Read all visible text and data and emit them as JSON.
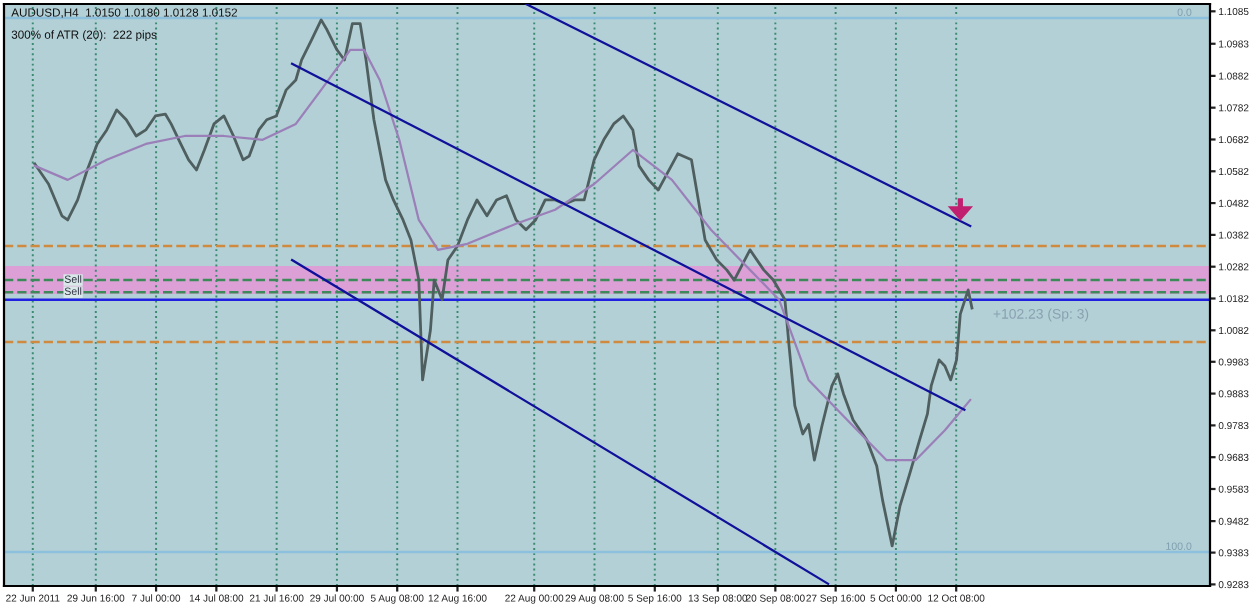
{
  "chart_data": {
    "type": "line",
    "title": "AUDUSD,H4  1.0150 1.0180 1.0128 1.0152",
    "subtitle": "300% of ATR (20):  222 pips",
    "annotations": [
      "+102.23 (Sp: 3)",
      {
        "text": "0.0",
        "x": "2011-11-10T00:00",
        "y": 1.1064
      },
      {
        "text": "100.0",
        "x": "2011-11-10T00:00",
        "y": 0.9385
      }
    ],
    "xlim": [
      "2011-06-18T12:00",
      "2011-11-12T05:00"
    ],
    "ylim": [
      0.9278,
      1.1108
    ],
    "xticks": [
      {
        "value": "2011-06-22",
        "label": "22 Jun 2011"
      },
      {
        "value": "2011-06-29T16:00",
        "label": "29 Jun 16:00"
      },
      {
        "value": "2011-07-07T00:00",
        "label": "7 Jul 00:00"
      },
      {
        "value": "2011-07-14T08:00",
        "label": "14 Jul 08:00"
      },
      {
        "value": "2011-07-21T16:00",
        "label": "21 Jul 16:00"
      },
      {
        "value": "2011-07-29T00:00",
        "label": "29 Jul 00:00"
      },
      {
        "value": "2011-08-05T08:00",
        "label": "5 Aug 08:00"
      },
      {
        "value": "2011-08-12T16:00",
        "label": "12 Aug 16:00"
      },
      {
        "value": "2011-08-22T00:00",
        "label": "22 Aug 00:00"
      },
      {
        "value": "2011-08-29T08:00",
        "label": "29 Aug 08:00"
      },
      {
        "value": "2011-09-05T16:00",
        "label": "5 Sep 16:00"
      },
      {
        "value": "2011-09-13T08:00",
        "label": "13 Sep 08:00"
      },
      {
        "value": "2011-09-20T08:00",
        "label": "20 Sep 08:00"
      },
      {
        "value": "2011-09-27T16:00",
        "label": "27 Sep 16:00"
      },
      {
        "value": "2011-10-05T00:00",
        "label": "5 Oct 00:00"
      },
      {
        "value": "2011-10-12T08:00",
        "label": "12 Oct 08:00"
      }
    ],
    "yticks": [
      1.1085,
      1.0983,
      1.0882,
      1.0782,
      1.0682,
      1.0582,
      1.0482,
      1.0382,
      1.0282,
      1.0182,
      1.0082,
      0.9983,
      0.9883,
      0.9783,
      0.9683,
      0.9583,
      0.9482,
      0.9383,
      0.9283
    ],
    "grid": "x",
    "legend": false,
    "series": [
      {
        "color": "#4f5f5f",
        "x": [
          "2011-06-22T06:00",
          "2011-06-23T22:00",
          "2011-06-25T13:00",
          "2011-06-26T06:00",
          "2011-06-27T11:00",
          "2011-06-28T15:00",
          "2011-06-29T20:00",
          "2011-07-01T00:00",
          "2011-07-02T05:00",
          "2011-07-03T09:00",
          "2011-07-04T14:00",
          "2011-07-05T18:00",
          "2011-07-06T22:00",
          "2011-07-08T03:00",
          "2011-07-08T20:00",
          "2011-07-10T00:00",
          "2011-07-10T23:00",
          "2011-07-11T22:00",
          "2011-07-12T21:00",
          "2011-07-14T01:00",
          "2011-07-15T06:00",
          "2011-07-16T10:00",
          "2011-07-17T14:00",
          "2011-07-18T08:00",
          "2011-07-19T12:00",
          "2011-07-20T11:00",
          "2011-07-21T15:00",
          "2011-07-22T20:00",
          "2011-07-24T00:00",
          "2011-07-24T17:00",
          "2011-07-25T22:00",
          "2011-07-27T02:00",
          "2011-07-27T19:00",
          "2011-07-29T00:00",
          "2011-07-29T22:00",
          "2011-07-30T21:00",
          "2011-07-31T20:00",
          "2011-08-01T13:00",
          "2011-08-02T12:00",
          "2011-08-03T22:00",
          "2011-08-04T21:00",
          "2011-08-06T01:00",
          "2011-08-07T00:00",
          "2011-08-07T23:00",
          "2011-08-08T10:00",
          "2011-08-09T09:00",
          "2011-08-09T20:00",
          "2011-08-10T19:00",
          "2011-08-11T12:00",
          "2011-08-12T16:00",
          "2011-08-13T21:00",
          "2011-08-15T01:00",
          "2011-08-16T06:00",
          "2011-08-17T10:00",
          "2011-08-18T15:00",
          "2011-08-19T19:00",
          "2011-08-21T00:00",
          "2011-08-22T04:00",
          "2011-08-23T08:00",
          "2011-08-24T13:00",
          "2011-08-25T17:00",
          "2011-08-26T22:00",
          "2011-08-28T02:00",
          "2011-08-29T07:00",
          "2011-08-30T11:00",
          "2011-08-31T16:00",
          "2011-09-01T20:00",
          "2011-09-03T00:00",
          "2011-09-03T18:00",
          "2011-09-04T22:00",
          "2011-09-06T02:00",
          "2011-09-08T11:00",
          "2011-09-10T03:00",
          "2011-09-11T19:00",
          "2011-09-13T05:00",
          "2011-09-14T10:00",
          "2011-09-15T08:00",
          "2011-09-17T06:00",
          "2011-09-18T22:00",
          "2011-09-20T02:00",
          "2011-09-21T12:00",
          "2011-09-22T00:00",
          "2011-09-22T17:00",
          "2011-09-23T16:00",
          "2011-09-24T09:00",
          "2011-09-25T02:00",
          "2011-09-26T00:00",
          "2011-09-27T05:00",
          "2011-09-27T22:00",
          "2011-09-28T15:00",
          "2011-09-29T19:00",
          "2011-10-01T11:00",
          "2011-10-02T16:00",
          "2011-10-03T09:00",
          "2011-10-04T13:00",
          "2011-10-05T12:00",
          "2011-10-06T16:00",
          "2011-10-07T21:00",
          "2011-10-08T20:00",
          "2011-10-09T07:00",
          "2011-10-10T06:00",
          "2011-10-10T23:00",
          "2011-10-11T16:00",
          "2011-10-12T09:00",
          "2011-10-12T20:00",
          "2011-10-13T19:00",
          "2011-10-14T06:00"
        ],
        "values": [
          1.0605,
          1.0542,
          1.0442,
          1.0429,
          1.0492,
          1.0586,
          1.0668,
          1.0712,
          1.0775,
          1.0744,
          1.0693,
          1.0712,
          1.0756,
          1.0762,
          1.0731,
          1.0668,
          1.0618,
          1.0586,
          1.0649,
          1.0731,
          1.0756,
          1.0693,
          1.0618,
          1.063,
          1.0712,
          1.0744,
          1.0756,
          1.0838,
          1.0869,
          1.0932,
          1.0995,
          1.1058,
          1.1027,
          1.0964,
          1.0932,
          1.1046,
          1.1046,
          1.0932,
          1.0744,
          1.0555,
          1.0492,
          1.0429,
          1.0366,
          1.024,
          0.9926,
          1.0083,
          1.024,
          1.0178,
          1.0303,
          1.0347,
          1.0429,
          1.0492,
          1.0442,
          1.0492,
          1.0505,
          1.0429,
          1.0398,
          1.0429,
          1.0492,
          1.0492,
          1.0479,
          1.0492,
          1.0492,
          1.0618,
          1.0681,
          1.0731,
          1.0756,
          1.0712,
          1.0599,
          1.0555,
          1.0523,
          1.0637,
          1.0618,
          1.0366,
          1.0303,
          1.0272,
          1.024,
          1.0335,
          1.0272,
          1.024,
          1.0178,
          1.0033,
          0.9844,
          0.9756,
          0.9786,
          0.9674,
          0.9781,
          0.9907,
          0.9945,
          0.9882,
          0.98,
          0.9737,
          0.9655,
          0.9548,
          0.9404,
          0.953,
          0.963,
          0.9737,
          0.9819,
          0.9907,
          0.9989,
          0.997,
          0.9926,
          0.9989,
          1.0133,
          1.0209,
          1.0152
        ]
      },
      {
        "color": "#9a7fb8",
        "x": [
          "2011-06-22T06:00",
          "2011-06-26T06:00",
          "2011-07-01T00:00",
          "2011-07-05T18:00",
          "2011-07-10T12:00",
          "2011-07-15T06:00",
          "2011-07-19T23:00",
          "2011-07-24T00:00",
          "2011-07-27T02:00",
          "2011-07-30T15:00",
          "2011-08-01T07:00",
          "2011-08-03T05:00",
          "2011-08-05T14:00",
          "2011-08-07T23:00",
          "2011-08-10T07:00",
          "2011-08-13T21:00",
          "2011-08-19T19:00",
          "2011-08-24T13:00",
          "2011-08-29T07:00",
          "2011-09-03T00:00",
          "2011-09-07T18:00",
          "2011-09-12T12:00",
          "2011-09-17T06:00",
          "2011-09-20T19:00",
          "2011-09-24T09:00",
          "2011-09-29T02:00",
          "2011-10-03T20:00",
          "2011-10-07T10:00",
          "2011-10-10T23:00",
          "2011-10-14T01:00"
        ],
        "values": [
          1.0599,
          1.0555,
          1.0618,
          1.0668,
          1.0693,
          1.0693,
          1.0681,
          1.0731,
          1.0838,
          1.0964,
          1.0964,
          1.0869,
          1.0681,
          1.0429,
          1.0335,
          1.0354,
          1.0417,
          1.0461,
          1.0542,
          1.0649,
          1.0555,
          1.0398,
          1.0272,
          1.0178,
          0.9926,
          0.98,
          0.9674,
          0.9674,
          0.9768,
          0.9863
        ]
      },
      {
        "color": "#10109a",
        "x": [
          "2011-08-21T00:00",
          "2011-10-14T01:00"
        ],
        "values": [
          1.1108,
          1.041
        ]
      },
      {
        "color": "#10109a",
        "x": [
          "2011-07-23T13:00",
          "2011-10-13T08:00"
        ],
        "values": [
          1.092,
          0.9832
        ]
      },
      {
        "color": "#10109a",
        "x": [
          "2011-07-23T13:00",
          "2011-09-26T18:00"
        ],
        "values": [
          1.0303,
          0.9285
        ]
      }
    ],
    "bands": [
      {
        "axis": "y",
        "from": 1.0196,
        "to": 1.0284,
        "color": "#dca0d6"
      }
    ],
    "ref_lines": [
      {
        "axis": "y",
        "value": 1.024,
        "label": "Sell",
        "color": "#3c8a5a",
        "line_style": "dashed"
      },
      {
        "axis": "y",
        "value": 1.0202,
        "label": "Sell",
        "color": "#3c8a5a",
        "line_style": "dashed"
      },
      {
        "axis": "y",
        "value": 1.0178,
        "color": "#2020e0",
        "line_style": "solid"
      },
      {
        "axis": "y",
        "value": 1.0347,
        "color": "#d08a40",
        "line_style": "dashed"
      },
      {
        "axis": "y",
        "value": 1.0045,
        "color": "#d08a40",
        "line_style": "dashed"
      },
      {
        "axis": "y",
        "value": 1.1064,
        "color": "#8cc0dc",
        "line_style": "solid"
      },
      {
        "axis": "y",
        "value": 0.9385,
        "color": "#8cc0dc",
        "line_style": "solid"
      }
    ]
  }
}
